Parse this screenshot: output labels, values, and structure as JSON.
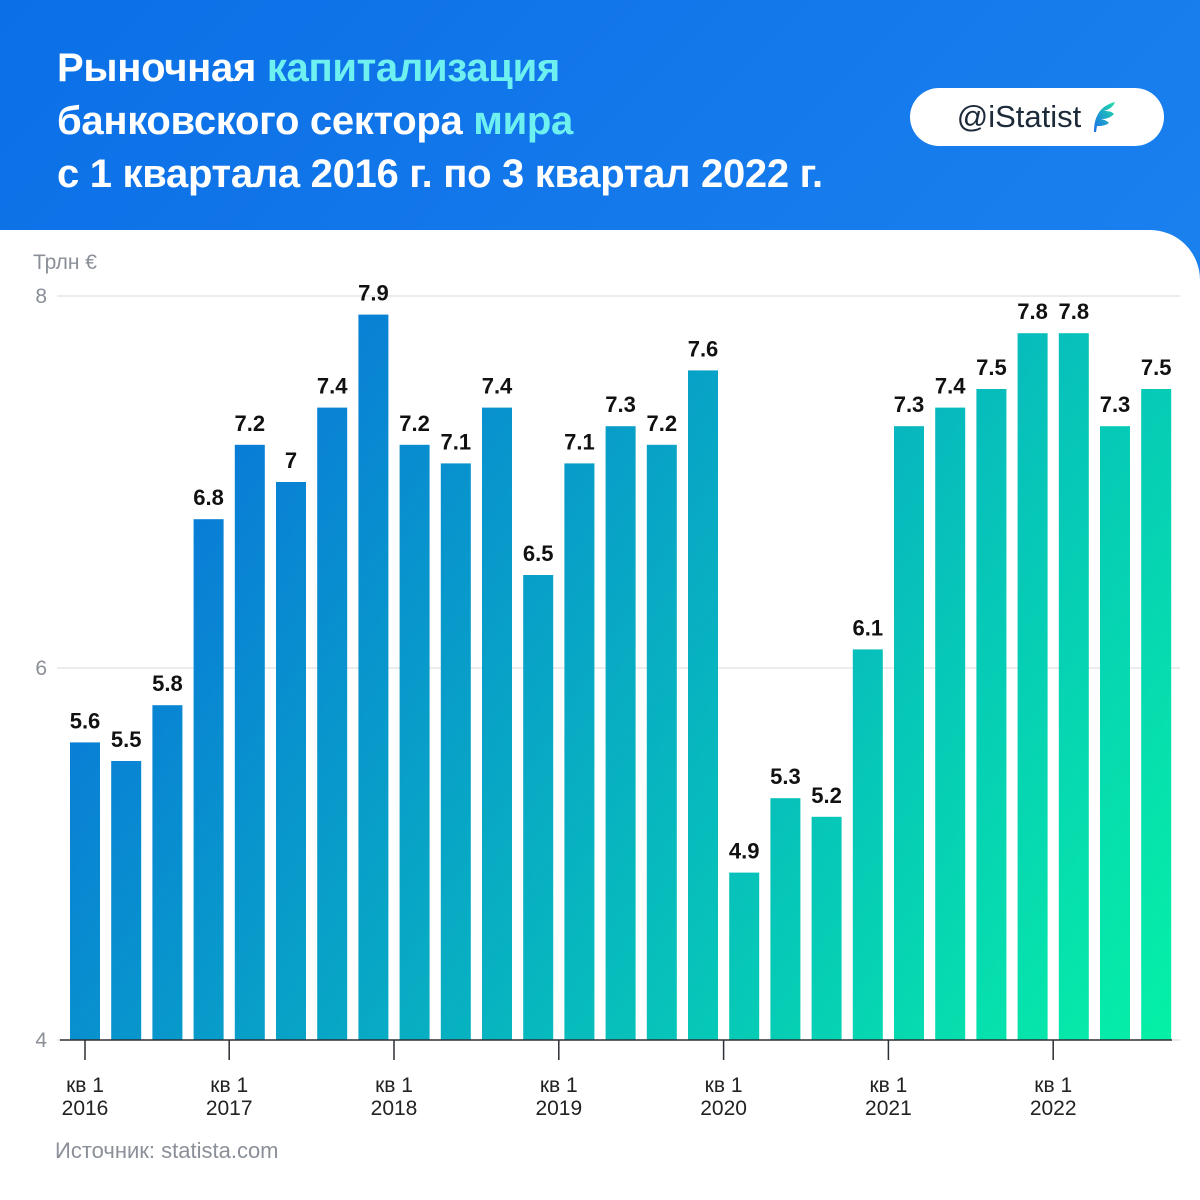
{
  "header": {
    "title_line1_a": "Рыночная ",
    "title_line1_b": "капитализация",
    "title_line2_a": "банковского сектора ",
    "title_line2_b": "мира",
    "title_line3": "с 1 квартала 2016 г. по 3 квартал 2022 г.",
    "badge_text": "@iStatist",
    "badge_icon": "istatist-logo-icon"
  },
  "colors": {
    "bar_start": "#0a66e0",
    "bar_end": "#05f2a6",
    "highlight": "#6ff0f0",
    "header_bg": "#0b6fe6"
  },
  "chart_data": {
    "type": "bar",
    "title": "Рыночная капитализация банковского сектора мира с 1 квартала 2016 г. по 3 квартал 2022 г.",
    "ylabel": "Трлн €",
    "ylim": [
      4,
      8
    ],
    "yticks": [
      4,
      6,
      8
    ],
    "grid": true,
    "values": [
      5.6,
      5.5,
      5.8,
      6.8,
      7.2,
      7.0,
      7.4,
      7.9,
      7.2,
      7.1,
      7.4,
      6.5,
      7.1,
      7.3,
      7.2,
      7.6,
      4.9,
      5.3,
      5.2,
      6.1,
      7.3,
      7.4,
      7.5,
      7.8,
      7.8,
      7.3,
      7.5
    ],
    "value_labels": [
      "5.6",
      "5.5",
      "5.8",
      "6.8",
      "7.2",
      "7",
      "7.4",
      "7.9",
      "7.2",
      "7.1",
      "7.4",
      "6.5",
      "7.1",
      "7.3",
      "7.2",
      "7.6",
      "4.9",
      "5.3",
      "5.2",
      "6.1",
      "7.3",
      "7.4",
      "7.5",
      "7.8",
      "7.8",
      "7.3",
      "7.5"
    ],
    "x_ticks": [
      {
        "index": 0,
        "quarter": "кв 1",
        "year": "2016"
      },
      {
        "index": 4,
        "quarter": "кв 1",
        "year": "2017"
      },
      {
        "index": 8,
        "quarter": "кв 1",
        "year": "2018"
      },
      {
        "index": 12,
        "quarter": "кв 1",
        "year": "2019"
      },
      {
        "index": 16,
        "quarter": "кв 1",
        "year": "2020"
      },
      {
        "index": 20,
        "quarter": "кв 1",
        "year": "2021"
      },
      {
        "index": 24,
        "quarter": "кв 1",
        "year": "2022"
      }
    ]
  },
  "footer": {
    "source": "Источник: statista.com"
  }
}
